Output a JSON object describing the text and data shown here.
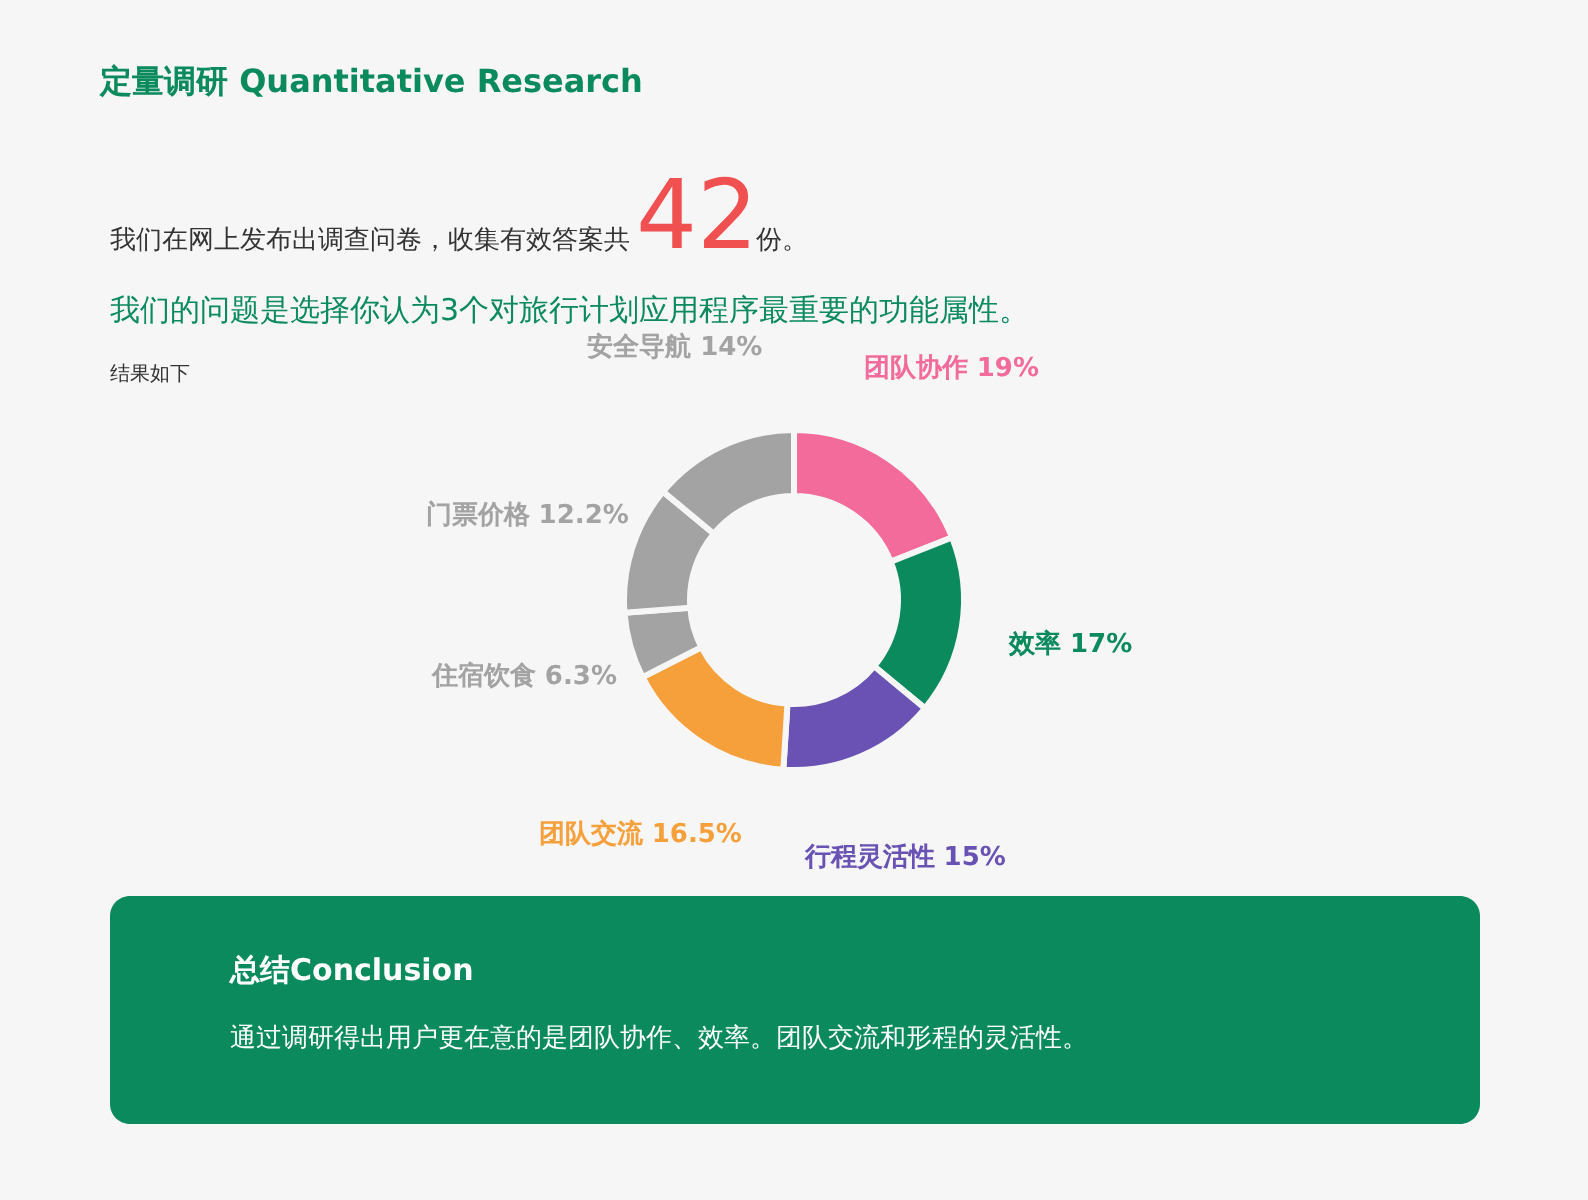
{
  "chart_data": {
    "type": "donut",
    "title": "定量调研 Quantitative Research",
    "categories": [
      "团队协作",
      "效率",
      "行程灵活性",
      "团队交流",
      "住宿饮食",
      "门票价格",
      "安全导航"
    ],
    "values": [
      19,
      17,
      15,
      16.5,
      6.3,
      12.2,
      14
    ],
    "value_labels": [
      "19%",
      "17%",
      "15%",
      "16.5%",
      "6.3%",
      "12.2%",
      "14%"
    ],
    "colors": [
      "#f26b9b",
      "#0b8a5e",
      "#6952b3",
      "#f6a03c",
      "#a3a3a3",
      "#a3a3a3",
      "#a3a3a3"
    ],
    "annotations": [
      "我们在网上发布出调查问卷，收集有效答案共",
      "42",
      "份。",
      "我们的问题是选择你认为3个对旅行计划应用程序最重要的功能属性。",
      "结果如下",
      "总结Conclusion",
      "通过调研得出用户更在意的是团队协作、效率。团队交流和形程的灵活性。"
    ]
  }
}
